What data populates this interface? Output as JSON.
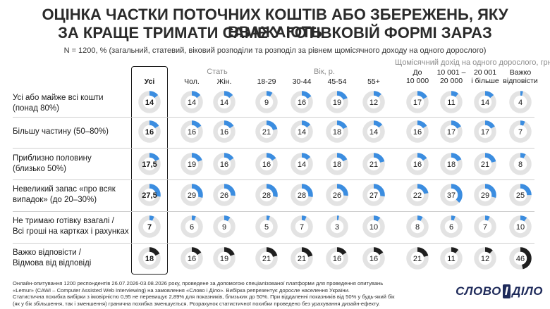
{
  "title_line1": "ОЦІНКА ЧАСТКИ ПОТОЧНИХ КОШТІВ АБО ЗБЕРЕЖЕНЬ, ЯКУ ВВАЖАЮТЬ",
  "title_line2": "ЗА КРАЩЕ ТРИМАТИ САМЕ У ГОТІВКОВІЙ ФОРМІ ЗАРАЗ",
  "subtitle": "N = 1200, % (загальний, статевий, віковий розподіли та розподіл за рівнем щомісячного доходу на одного дорослого)",
  "groups": {
    "gender": "Стать",
    "age": "Вік, р.",
    "income": "Щомісячний дохід на одного дорослого, грн"
  },
  "footnote": {
    "line1": "Онлайн-опитування 1200 респондентів 26.07.2026-03.08.2026 року, проведене за допомогою спеціалізованої платформи для проведення опитувань",
    "line2": "«Lemur» (CAWI – Computer Assisted Web Interviewing) на замовлення «Слово і Діло». Вибірка репрезентує доросле населення України.",
    "line3": "Статистична похибка вибірки з імовірністю 0,95 не перевищує 2,89% для показників, близьких до 50%. При віддаленні показників від 50% у будь-який бік",
    "line4": "(як у бік збільшення, так і зменшення) гранична похибка зменшується. Розрахунок статистичної похибки проведено без урахування дизайн-ефекту."
  },
  "logo": {
    "part1": "СЛОВО",
    "part2": "І",
    "part3": "ДІЛО"
  },
  "colors": {
    "accent": "#3b8de0",
    "dark": "#1f1f1f",
    "ring_bg": "#e3e3e3",
    "highlight_border": "#1a1a1a"
  },
  "chart_data": {
    "type": "table",
    "title": "ОЦІНКА ЧАСТКИ ПОТОЧНИХ КОШТІВ АБО ЗБЕРЕЖЕНЬ, ЯКУ ВВАЖАЮТЬ ЗА КРАЩЕ ТРИМАТИ САМЕ У ГОТІВКОВІЙ ФОРМІ ЗАРАЗ",
    "unit": "%",
    "columns": [
      {
        "label": "Усі",
        "group": ""
      },
      {
        "label": "Чол.",
        "group": "Стать"
      },
      {
        "label": "Жін.",
        "group": "Стать"
      },
      {
        "label": "18-29",
        "group": "Вік, р."
      },
      {
        "label": "30-44",
        "group": "Вік, р."
      },
      {
        "label": "45-54",
        "group": "Вік, р."
      },
      {
        "label": "55+",
        "group": "Вік, р."
      },
      {
        "label": "До\n10 000",
        "group": "Щомісячний дохід на одного дорослого, грн"
      },
      {
        "label": "10 001 –\n20 000",
        "group": "Щомісячний дохід на одного дорослого, грн"
      },
      {
        "label": "20 001\nі більше",
        "group": "Щомісячний дохід на одного дорослого, грн"
      },
      {
        "label": "Важко\nвідповісти",
        "group": "Щомісячний дохід на одного дорослого, грн"
      }
    ],
    "rows": [
      {
        "label": "Усі або майже всі кошти\n(понад 80%)",
        "values": [
          "14",
          "14",
          "14",
          "9",
          "16",
          "19",
          "12",
          "17",
          "11",
          "14",
          "4"
        ],
        "series_type": "accent"
      },
      {
        "label": "Більшу частину (50–80%)",
        "values": [
          "16",
          "16",
          "16",
          "21",
          "14",
          "18",
          "14",
          "16",
          "17",
          "17",
          "7"
        ],
        "series_type": "accent"
      },
      {
        "label": "Приблизно половину\n(близько 50%)",
        "values": [
          "17,5",
          "19",
          "16",
          "16",
          "14",
          "18",
          "21",
          "16",
          "18",
          "21",
          "8"
        ],
        "series_type": "accent"
      },
      {
        "label": "Невеликий запас «про всяк\nвипадок» (до 20–30%)",
        "values": [
          "27,5",
          "29",
          "26",
          "28",
          "28",
          "26",
          "27",
          "22",
          "37",
          "29",
          "25"
        ],
        "series_type": "accent"
      },
      {
        "label": "Не тримаю готівку взагалі /\nВсі гроші на картках і рахунках",
        "values": [
          "7",
          "6",
          "9",
          "5",
          "7",
          "3",
          "10",
          "8",
          "6",
          "7",
          "10"
        ],
        "series_type": "accent"
      },
      {
        "label": "Важко відповісти /\nВідмова від відповіді",
        "values": [
          "18",
          "16",
          "19",
          "21",
          "21",
          "16",
          "16",
          "21",
          "11",
          "12",
          "46"
        ],
        "series_type": "dark"
      }
    ]
  }
}
